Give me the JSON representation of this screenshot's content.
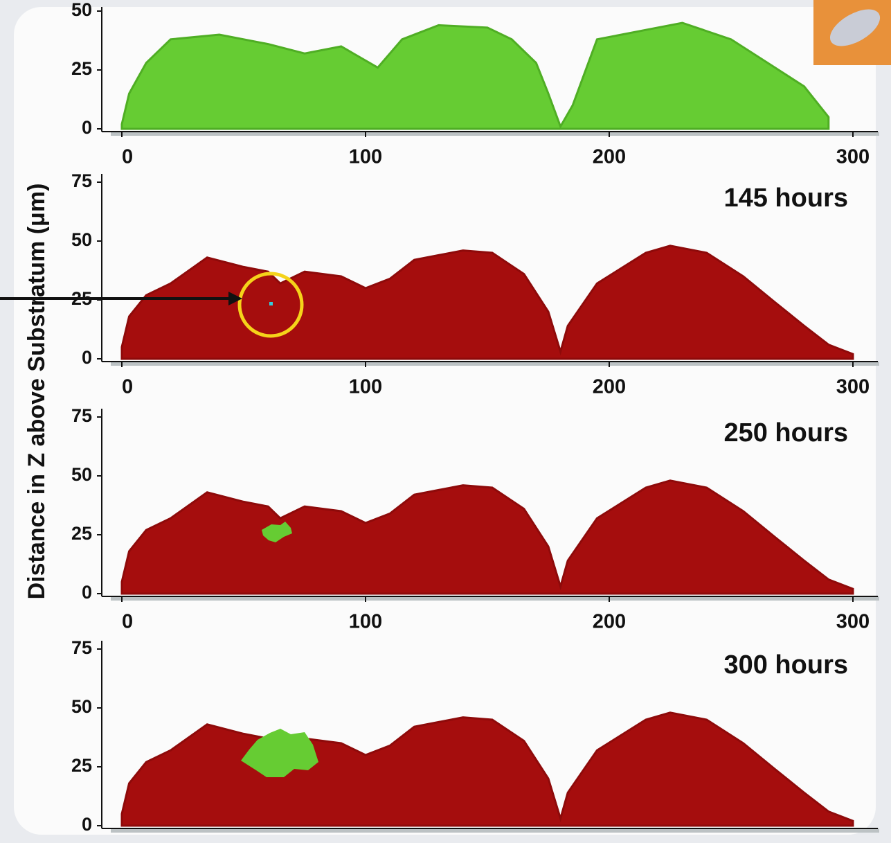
{
  "y_axis_label": "Distance in Z above Substratum (μm)",
  "panels": [
    {
      "yticks": [
        0,
        25,
        50
      ],
      "xticks": [
        0,
        100,
        200,
        300
      ]
    },
    {
      "label": "145 hours",
      "yticks": [
        0,
        25,
        50,
        75
      ],
      "xticks": [
        0,
        100,
        200,
        300
      ]
    },
    {
      "label": "250 hours",
      "yticks": [
        0,
        25,
        50,
        75
      ],
      "xticks": [
        0,
        100,
        200,
        300
      ]
    },
    {
      "label": "300 hours",
      "yticks": [
        0,
        25,
        50,
        75
      ]
    }
  ]
}
